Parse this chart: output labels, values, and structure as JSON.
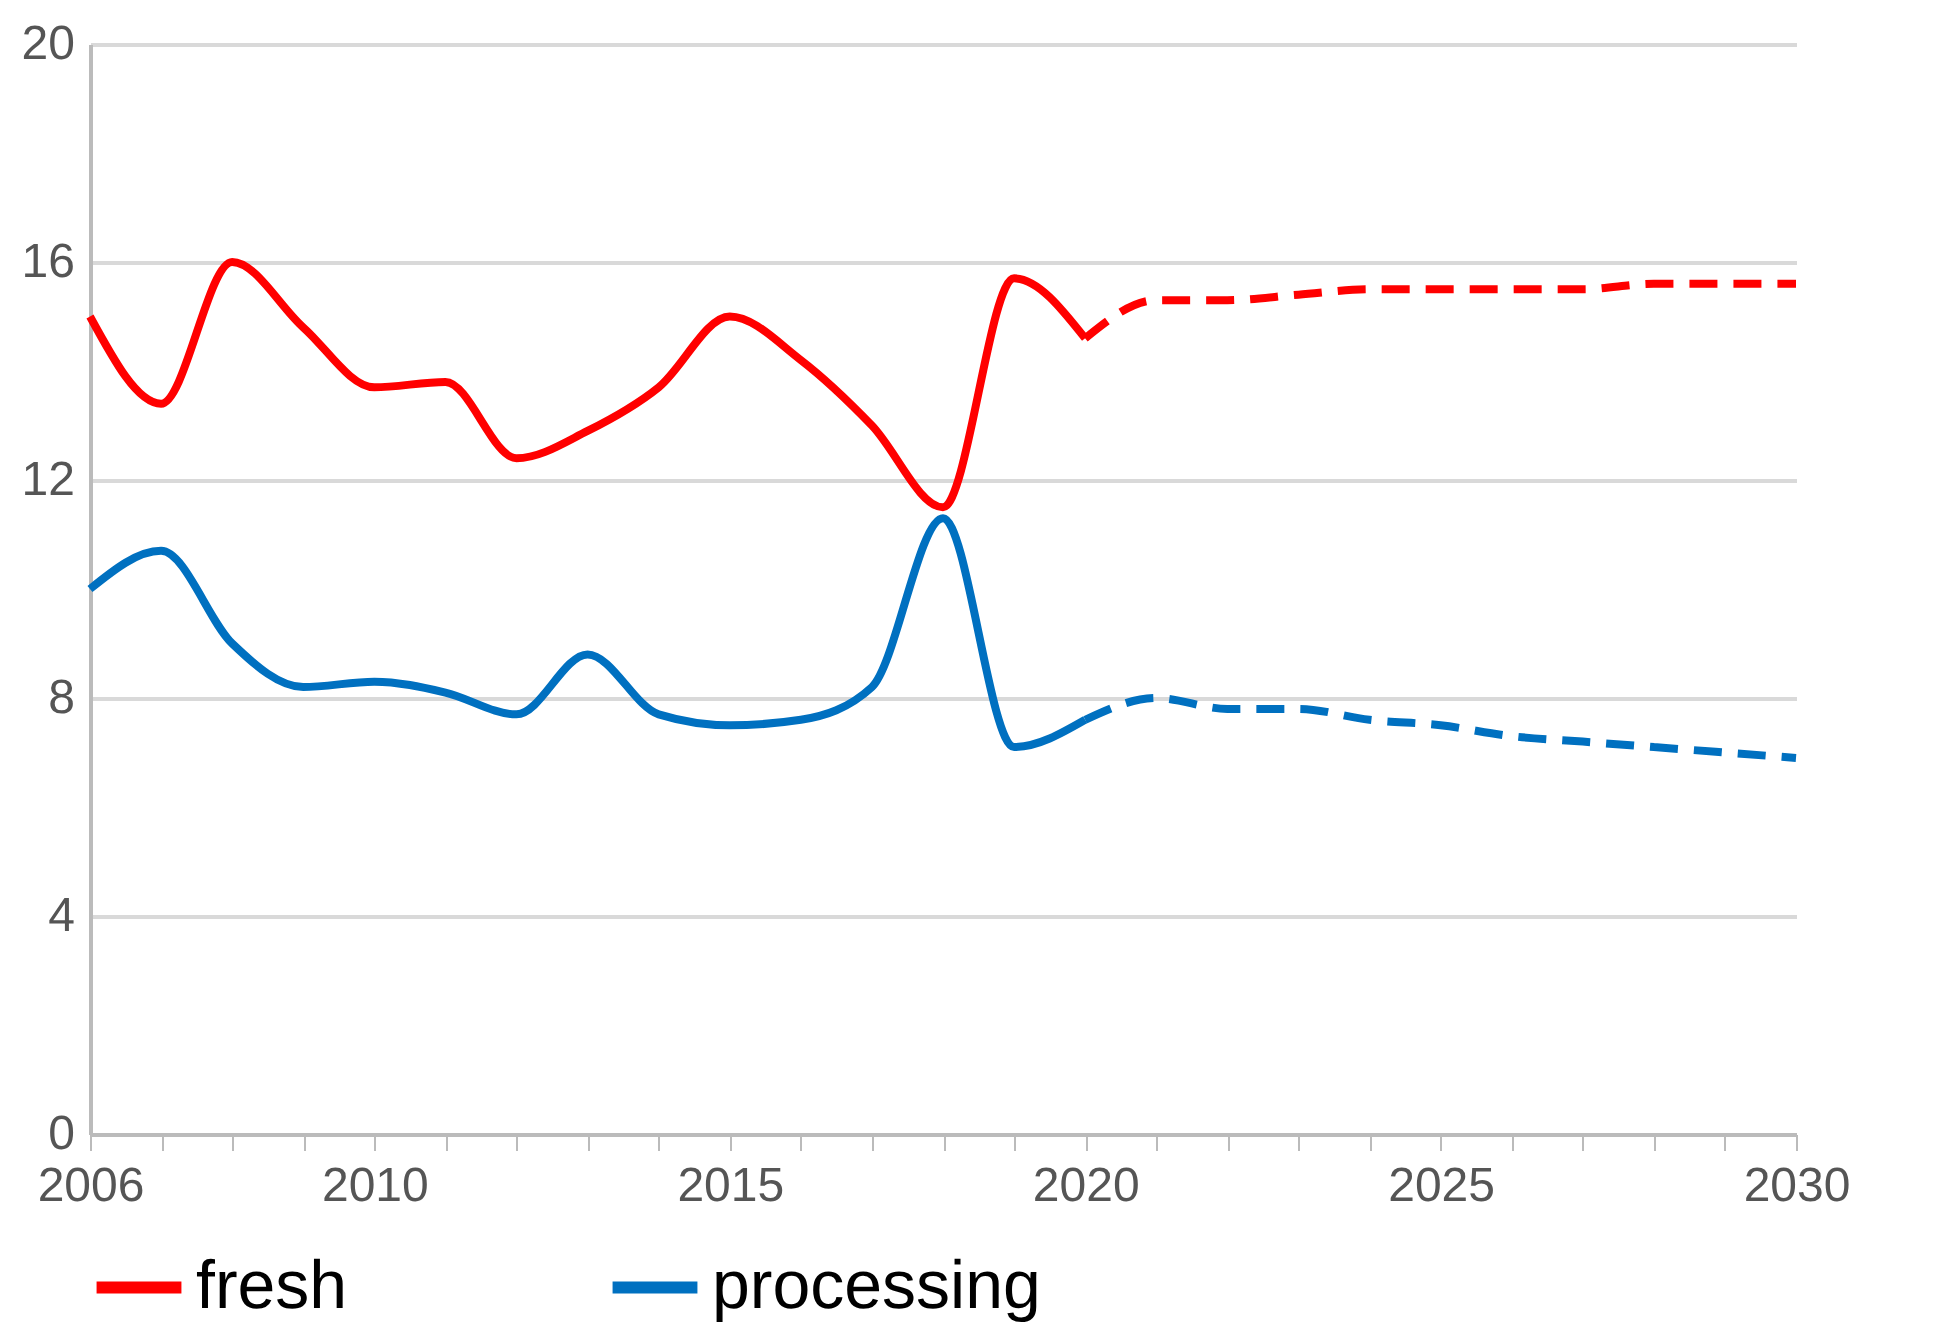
{
  "chart_data": {
    "type": "line",
    "xlim": [
      2006,
      2030
    ],
    "ylim": [
      0,
      20
    ],
    "xticks": [
      2006,
      {
        "value": 2007,
        "label": null
      },
      {
        "value": 2008,
        "label": null
      },
      {
        "value": 2009,
        "label": null
      },
      2010,
      {
        "value": 2011,
        "label": null
      },
      {
        "value": 2012,
        "label": null
      },
      {
        "value": 2013,
        "label": null
      },
      {
        "value": 2014,
        "label": null
      },
      2015,
      {
        "value": 2016,
        "label": null
      },
      {
        "value": 2017,
        "label": null
      },
      {
        "value": 2018,
        "label": null
      },
      {
        "value": 2019,
        "label": null
      },
      2020,
      {
        "value": 2021,
        "label": null
      },
      {
        "value": 2022,
        "label": null
      },
      {
        "value": 2023,
        "label": null
      },
      {
        "value": 2024,
        "label": null
      },
      2025,
      {
        "value": 2026,
        "label": null
      },
      {
        "value": 2027,
        "label": null
      },
      {
        "value": 2028,
        "label": null
      },
      {
        "value": 2029,
        "label": null
      },
      2030
    ],
    "yticks": [
      0,
      4,
      8,
      12,
      16,
      20
    ],
    "grid": "y",
    "legend": "bottom",
    "series": [
      {
        "name": "fresh",
        "color": "#ff0000",
        "line_style": "solid",
        "x": [
          2006,
          2007,
          2008,
          2009,
          2010,
          2011,
          2012,
          2013,
          2014,
          2015,
          2016,
          2017,
          2018,
          2019,
          2020
        ],
        "values": [
          15.0,
          13.4,
          16.0,
          14.8,
          13.7,
          13.8,
          12.4,
          12.9,
          13.7,
          15.0,
          14.2,
          13.0,
          11.5,
          15.7,
          14.6
        ]
      },
      {
        "name": "processing",
        "color": "#0070c0",
        "line_style": "solid",
        "x": [
          2006,
          2007,
          2008,
          2009,
          2010,
          2011,
          2012,
          2013,
          2014,
          2015,
          2016,
          2017,
          2018,
          2019,
          2020
        ],
        "values": [
          10.0,
          10.7,
          9.0,
          8.2,
          8.3,
          8.1,
          7.7,
          8.8,
          7.7,
          7.5,
          7.6,
          8.2,
          11.3,
          7.1,
          7.6
        ]
      },
      {
        "color": "#ff0000",
        "line_style": "dashed",
        "x": [
          2020,
          2021,
          2022,
          2023,
          2024,
          2025,
          2026,
          2027,
          2028,
          2029,
          2030
        ],
        "values": [
          14.6,
          15.3,
          15.3,
          15.4,
          15.5,
          15.5,
          15.5,
          15.5,
          15.6,
          15.6,
          15.6
        ]
      },
      {
        "color": "#0070c0",
        "line_style": "dashed",
        "x": [
          2020,
          2021,
          2022,
          2023,
          2024,
          2025,
          2026,
          2027,
          2028,
          2029,
          2030
        ],
        "values": [
          7.6,
          8.0,
          7.8,
          7.8,
          7.6,
          7.5,
          7.3,
          7.2,
          7.1,
          7.0,
          6.9
        ]
      }
    ]
  }
}
